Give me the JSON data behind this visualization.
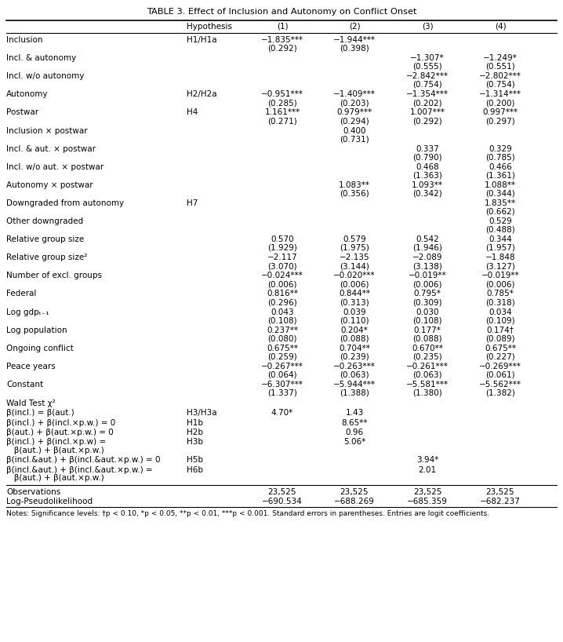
{
  "title": "TABLE 3. Effect of Inclusion and Autonomy on Conflict Onset",
  "col_headers": [
    "Hypothesis",
    "(1)",
    "(2)",
    "(3)",
    "(4)"
  ],
  "rows": [
    {
      "label": "Inclusion",
      "hyp": "H1/H1a",
      "vals": [
        "−1.835***",
        "−1.944***",
        "",
        ""
      ],
      "ses": [
        "(0.292)",
        "(0.398)",
        "",
        ""
      ]
    },
    {
      "label": "Incl. & autonomy",
      "hyp": "",
      "vals": [
        "",
        "",
        "−1.307*",
        "−1.249*"
      ],
      "ses": [
        "",
        "",
        "(0.555)",
        "(0.551)"
      ]
    },
    {
      "label": "Incl. w/o autonomy",
      "hyp": "",
      "vals": [
        "",
        "",
        "−2.842***",
        "−2.802***"
      ],
      "ses": [
        "",
        "",
        "(0.754)",
        "(0.754)"
      ]
    },
    {
      "label": "Autonomy",
      "hyp": "H2/H2a",
      "vals": [
        "−0.951***",
        "−1.409***",
        "−1.354***",
        "−1.314***"
      ],
      "ses": [
        "(0.285)",
        "(0.203)",
        "(0.202)",
        "(0.200)"
      ]
    },
    {
      "label": "Postwar",
      "hyp": "H4",
      "vals": [
        "1.161***",
        "0.979***",
        "1.007***",
        "0.997***"
      ],
      "ses": [
        "(0.271)",
        "(0.294)",
        "(0.292)",
        "(0.297)"
      ]
    },
    {
      "label": "Inclusion × postwar",
      "hyp": "",
      "vals": [
        "",
        "0.400",
        "",
        ""
      ],
      "ses": [
        "",
        "(0.731)",
        "",
        ""
      ]
    },
    {
      "label": "Incl. & aut. × postwar",
      "hyp": "",
      "vals": [
        "",
        "",
        "0.337",
        "0.329"
      ],
      "ses": [
        "",
        "",
        "(0.790)",
        "(0.785)"
      ]
    },
    {
      "label": "Incl. w/o aut. × postwar",
      "hyp": "",
      "vals": [
        "",
        "",
        "0.468",
        "0.466"
      ],
      "ses": [
        "",
        "",
        "(1.363)",
        "(1.361)"
      ]
    },
    {
      "label": "Autonomy × postwar",
      "hyp": "",
      "vals": [
        "",
        "1.083**",
        "1.093**",
        "1.088**"
      ],
      "ses": [
        "",
        "(0.356)",
        "(0.342)",
        "(0.344)"
      ]
    },
    {
      "label": "Downgraded from autonomy",
      "hyp": "H7",
      "vals": [
        "",
        "",
        "",
        "1.835**"
      ],
      "ses": [
        "",
        "",
        "",
        "(0.662)"
      ]
    },
    {
      "label": "Other downgraded",
      "hyp": "",
      "vals": [
        "",
        "",
        "",
        "0.529"
      ],
      "ses": [
        "",
        "",
        "",
        "(0.488)"
      ]
    },
    {
      "label": "Relative group size",
      "hyp": "",
      "vals": [
        "0.570",
        "0.579",
        "0.542",
        "0.344"
      ],
      "ses": [
        "(1.929)",
        "(1.975)",
        "(1.946)",
        "(1.957)"
      ]
    },
    {
      "label": "Relative group size²",
      "hyp": "",
      "vals": [
        "−2.117",
        "−2.135",
        "−2.089",
        "−1.848"
      ],
      "ses": [
        "(3.070)",
        "(3.144)",
        "(3.138)",
        "(3.127)"
      ]
    },
    {
      "label": "Number of excl. groups",
      "hyp": "",
      "vals": [
        "−0.024***",
        "−0.020***",
        "−0.019**",
        "−0.019**"
      ],
      "ses": [
        "(0.006)",
        "(0.006)",
        "(0.006)",
        "(0.006)"
      ]
    },
    {
      "label": "Federal",
      "hyp": "",
      "vals": [
        "0.816**",
        "0.844**",
        "0.795*",
        "0.785*"
      ],
      "ses": [
        "(0.296)",
        "(0.313)",
        "(0.309)",
        "(0.318)"
      ]
    },
    {
      "label": "Log gdpₜ₋₁",
      "hyp": "",
      "vals": [
        "0.043",
        "0.039",
        "0.030",
        "0.034"
      ],
      "ses": [
        "(0.108)",
        "(0.110)",
        "(0.108)",
        "(0.109)"
      ]
    },
    {
      "label": "Log population",
      "hyp": "",
      "vals": [
        "0.237**",
        "0.204*",
        "0.177*",
        "0.174†"
      ],
      "ses": [
        "(0.080)",
        "(0.088)",
        "(0.088)",
        "(0.089)"
      ]
    },
    {
      "label": "Ongoing conflict",
      "hyp": "",
      "vals": [
        "0.675**",
        "0.704**",
        "0.670**",
        "0.675**"
      ],
      "ses": [
        "(0.259)",
        "(0.239)",
        "(0.235)",
        "(0.227)"
      ]
    },
    {
      "label": "Peace years",
      "hyp": "",
      "vals": [
        "−0.267***",
        "−0.263***",
        "−0.261***",
        "−0.269***"
      ],
      "ses": [
        "(0.064)",
        "(0.063)",
        "(0.063)",
        "(0.061)"
      ]
    },
    {
      "label": "Constant",
      "hyp": "",
      "vals": [
        "−6.307***",
        "−5.944***",
        "−5.581***",
        "−5.562***"
      ],
      "ses": [
        "(1.337)",
        "(1.388)",
        "(1.380)",
        "(1.382)"
      ]
    }
  ],
  "wald_header": "Wald Test χ²",
  "wald_rows": [
    {
      "label": "β(incl.) = β(aut.)",
      "label2": "",
      "hyp": "H3/H3a",
      "vals": [
        "4.70*",
        "1.43",
        "",
        ""
      ]
    },
    {
      "label": "β(incl.) + β(incl.×p.w.) = 0",
      "label2": "",
      "hyp": "H1b",
      "vals": [
        "",
        "8.65**",
        "",
        ""
      ]
    },
    {
      "label": "β(aut.) + β(aut.×p.w.) = 0",
      "label2": "",
      "hyp": "H2b",
      "vals": [
        "",
        "0.96",
        "",
        ""
      ]
    },
    {
      "label": "β(incl.) + β(incl.×p.w) =",
      "label2": "   β(aut.) + β(aut.×p.w.)",
      "hyp": "H3b",
      "vals": [
        "",
        "5.06*",
        "",
        ""
      ]
    },
    {
      "label": "β(incl.&aut.) + β(incl.&aut.×p.w.) = 0",
      "label2": "",
      "hyp": "H5b",
      "vals": [
        "",
        "",
        "3.94*",
        ""
      ]
    },
    {
      "label": "β(incl.&aut.) + β(incl.&aut.×p.w.) =",
      "label2": "   β(aut.) + β(aut.×p.w.)",
      "hyp": "H6b",
      "vals": [
        "",
        "",
        "2.01",
        ""
      ]
    }
  ],
  "footer_rows": [
    {
      "label": "Observations",
      "vals": [
        "23,525",
        "23,525",
        "23,525",
        "23,525"
      ]
    },
    {
      "label": "Log-Pseudolikelihood",
      "vals": [
        "−690.534",
        "−688.269",
        "−685.359",
        "−682.237"
      ]
    }
  ],
  "footnote": "Notes: Significance levels: †p < 0.10, *p < 0.05, **p < 0.01, ***p < 0.001. Standard errors in parentheses. Entries are logit coefficients."
}
